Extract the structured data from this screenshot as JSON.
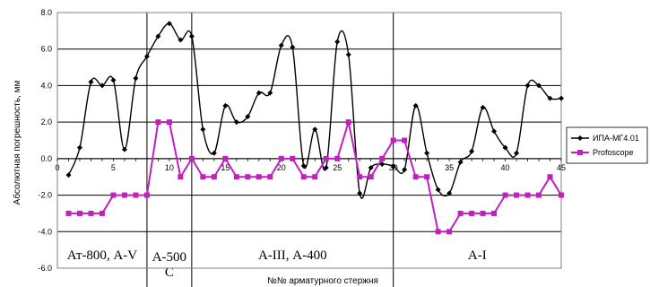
{
  "chart_data": {
    "type": "line",
    "xlabel": "№№ арматурного стержня",
    "ylabel": "Абсолютная погрешность, мм",
    "ylim": [
      -6.0,
      8.0
    ],
    "yticks": [
      "-6.0",
      "-4.0",
      "-2.0",
      "0.0",
      "2.0",
      "4.0",
      "6.0",
      "8.0"
    ],
    "xlim": [
      0,
      45
    ],
    "xticks": [
      "0",
      "5",
      "10",
      "15",
      "20",
      "25",
      "30",
      "35",
      "40",
      "45"
    ],
    "grid": "horizontal",
    "legend_position": "right",
    "series": [
      {
        "name": "ИПА-МГ4.01",
        "color": "#000000",
        "marker": "diamond",
        "x": [
          1,
          2,
          3,
          4,
          5,
          6,
          7,
          8,
          9,
          10,
          11,
          12,
          13,
          14,
          15,
          16,
          17,
          18,
          19,
          20,
          21,
          22,
          23,
          24,
          25,
          26,
          27,
          28,
          29,
          30,
          31,
          32,
          33,
          34,
          35,
          36,
          37,
          38,
          39,
          40,
          41,
          42,
          43,
          44,
          45
        ],
        "values": [
          -0.9,
          0.6,
          4.2,
          4.0,
          4.3,
          0.5,
          4.4,
          5.6,
          6.7,
          7.4,
          6.5,
          6.7,
          1.6,
          0.3,
          2.9,
          2.0,
          2.3,
          3.6,
          3.6,
          6.2,
          6.1,
          -0.4,
          1.6,
          -0.5,
          6.4,
          5.7,
          -1.9,
          -0.5,
          -0.3,
          -0.4,
          -0.6,
          2.9,
          0.3,
          -1.7,
          -1.9,
          -0.2,
          0.4,
          2.8,
          1.5,
          0.6,
          0.3,
          4.0,
          4.0,
          3.3,
          3.3
        ]
      },
      {
        "name": "Profoscope",
        "color": "#c020c0",
        "marker": "square",
        "x": [
          1,
          2,
          3,
          4,
          5,
          6,
          7,
          8,
          9,
          10,
          11,
          12,
          13,
          14,
          15,
          16,
          17,
          18,
          19,
          20,
          21,
          22,
          23,
          24,
          25,
          26,
          27,
          28,
          29,
          30,
          31,
          32,
          33,
          34,
          35,
          36,
          37,
          38,
          39,
          40,
          41,
          42,
          43,
          44,
          45
        ],
        "values": [
          -3,
          -3,
          -3,
          -3,
          -2,
          -2,
          -2,
          -2,
          2,
          2,
          -1,
          0,
          -1,
          -1,
          0,
          -1,
          -1,
          -1,
          -1,
          0,
          0,
          -1,
          -1,
          0,
          0,
          2,
          -1,
          -1,
          0,
          1,
          1,
          -1,
          -1,
          -4,
          -4,
          -3,
          -3,
          -3,
          -3,
          -2,
          -2,
          -2,
          -2,
          -1,
          -2
        ]
      }
    ],
    "regions": [
      {
        "label": "Ат-800, А-V",
        "start": 0,
        "end": 8
      },
      {
        "label": "А-500 С",
        "start": 8,
        "end": 12
      },
      {
        "label": "А-III, А-400",
        "start": 12,
        "end": 30
      },
      {
        "label": "А-I",
        "start": 30,
        "end": 45
      }
    ]
  }
}
